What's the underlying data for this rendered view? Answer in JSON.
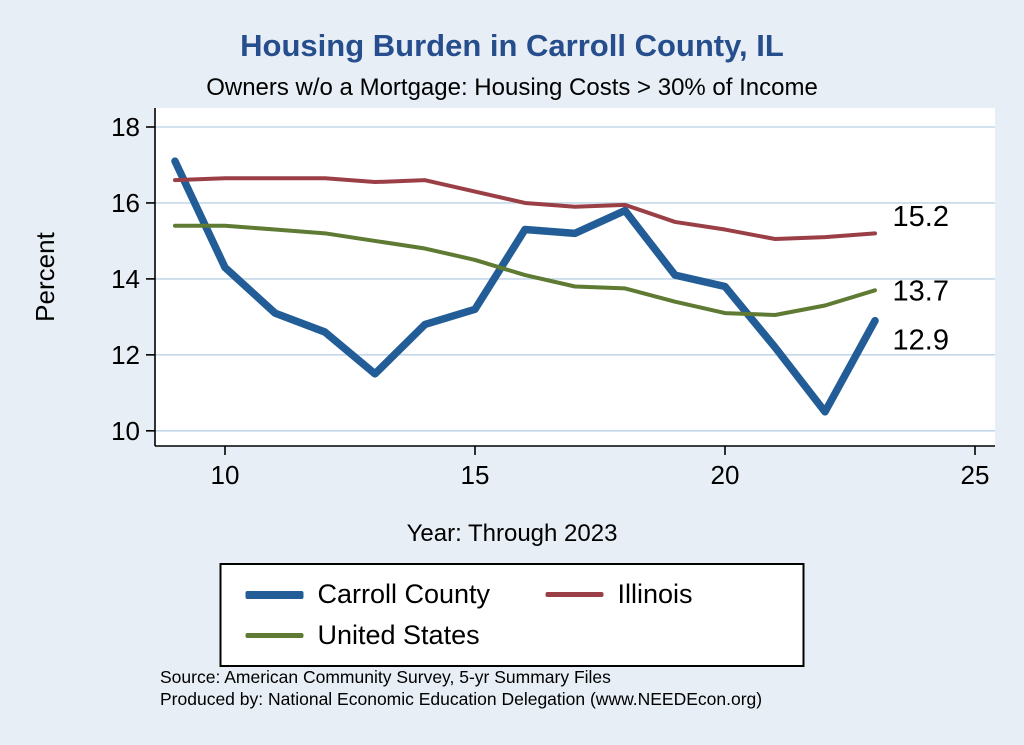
{
  "page": {
    "source_line1": "Source: American Community Survey, 5-yr Summary Files",
    "source_line2": "Produced by: National Economic Education Delegation (www.NEEDEcon.org)"
  },
  "colors": {
    "background": "#e7eef6",
    "plot_background": "#ffffff",
    "grid": "#c4d8e9",
    "axis": "#000000",
    "title": "#264e8d"
  },
  "chart_data": {
    "type": "line",
    "title": "Housing Burden in Carroll County, IL",
    "subtitle": "Owners w/o a Mortgage: Housing Costs > 30% of Income",
    "xlabel": "Year: Through 2023",
    "ylabel": "Percent",
    "xlim": [
      8.6,
      25.4
    ],
    "ylim": [
      9.6,
      18.5
    ],
    "xticks": [
      10,
      15,
      20,
      25
    ],
    "yticks": [
      10,
      12,
      14,
      16,
      18
    ],
    "grid": "horizontal",
    "x": [
      9,
      10,
      11,
      12,
      13,
      14,
      15,
      16,
      17,
      18,
      19,
      20,
      21,
      22,
      23
    ],
    "series": [
      {
        "name": "Carroll County",
        "color": "#235d97",
        "width": 7.5,
        "values": [
          17.1,
          14.3,
          13.1,
          12.6,
          11.5,
          12.8,
          13.2,
          15.3,
          15.2,
          15.8,
          14.1,
          13.8,
          12.2,
          10.5,
          12.9
        ]
      },
      {
        "name": "Illinois",
        "color": "#9a3f46",
        "width": 4,
        "values": [
          16.6,
          16.65,
          16.65,
          16.65,
          16.55,
          16.6,
          16.3,
          16.0,
          15.9,
          15.95,
          15.5,
          15.3,
          15.05,
          15.1,
          15.2
        ]
      },
      {
        "name": "United States",
        "color": "#5e7a33",
        "width": 4,
        "values": [
          15.4,
          15.4,
          15.3,
          15.2,
          15.0,
          14.8,
          14.5,
          14.1,
          13.8,
          13.75,
          13.4,
          13.1,
          13.05,
          13.3,
          13.7
        ]
      }
    ],
    "end_labels": [
      {
        "text": "15.2",
        "x": 23.35,
        "y": 15.65
      },
      {
        "text": "13.7",
        "x": 23.35,
        "y": 13.7
      },
      {
        "text": "12.9",
        "x": 23.35,
        "y": 12.4
      }
    ],
    "legend": {
      "position": "bottom",
      "entries": [
        "Carroll County",
        "Illinois",
        "United States"
      ]
    }
  }
}
